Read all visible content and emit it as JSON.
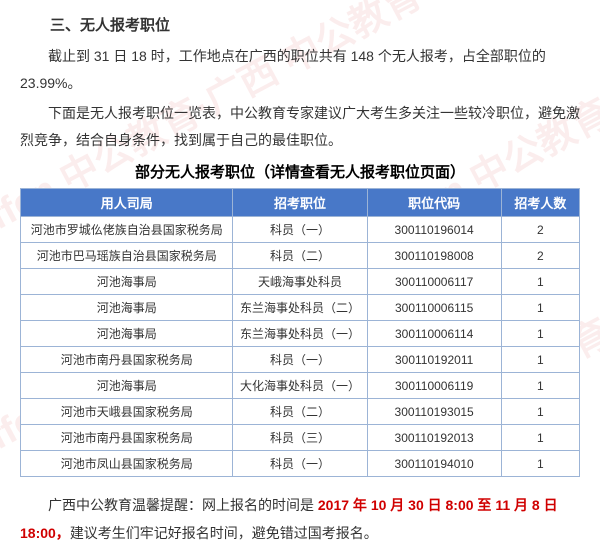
{
  "watermark_text": "offcn 中公教育·广西 中公教育",
  "section_title": "三、无人报考职位",
  "para1_a": "截止到 31 日 18 时，工作地点在广西的职位共有 148 个无人报考，占全部职位的 23.99%。",
  "para2": "下面是无人报考职位一览表，中公教育专家建议广大考生多关注一些较冷职位，避免激烈竞争，结合自身条件，找到属于自己的最佳职位。",
  "table_title": "部分无人报考职位（详情查看无人报考职位页面）",
  "table": {
    "columns": [
      "用人司局",
      "招考职位",
      "职位代码",
      "招考人数"
    ],
    "col_widths": [
      "38%",
      "24%",
      "24%",
      "14%"
    ],
    "header_bg": "#4878c8",
    "header_color": "#ffffff",
    "border_color": "#9cb4d6",
    "rows": [
      [
        "河池市罗城仫佬族自治县国家税务局",
        "科员（一）",
        "300110196014",
        "2"
      ],
      [
        "河池市巴马瑶族自治县国家税务局",
        "科员（二）",
        "300110198008",
        "2"
      ],
      [
        "河池海事局",
        "天峨海事处科员",
        "300110006117",
        "1"
      ],
      [
        "河池海事局",
        "东兰海事处科员（二）",
        "300110006115",
        "1"
      ],
      [
        "河池海事局",
        "东兰海事处科员（一）",
        "300110006114",
        "1"
      ],
      [
        "河池市南丹县国家税务局",
        "科员（一）",
        "300110192011",
        "1"
      ],
      [
        "河池海事局",
        "大化海事处科员（一）",
        "300110006119",
        "1"
      ],
      [
        "河池市天峨县国家税务局",
        "科员（二）",
        "300110193015",
        "1"
      ],
      [
        "河池市南丹县国家税务局",
        "科员（三）",
        "300110192013",
        "1"
      ],
      [
        "河池市凤山县国家税务局",
        "科员（一）",
        "300110194010",
        "1"
      ]
    ]
  },
  "reminder_prefix": "广西中公教育温馨提醒：网上报名的时间是 ",
  "reminder_date": "2017 年 10 月 30 日 8:00 至 11 月 8 日 18:00，",
  "reminder_suffix": "建议考生们牢记好报名时间，避免错过国考报名。",
  "red_color": "#d00000"
}
